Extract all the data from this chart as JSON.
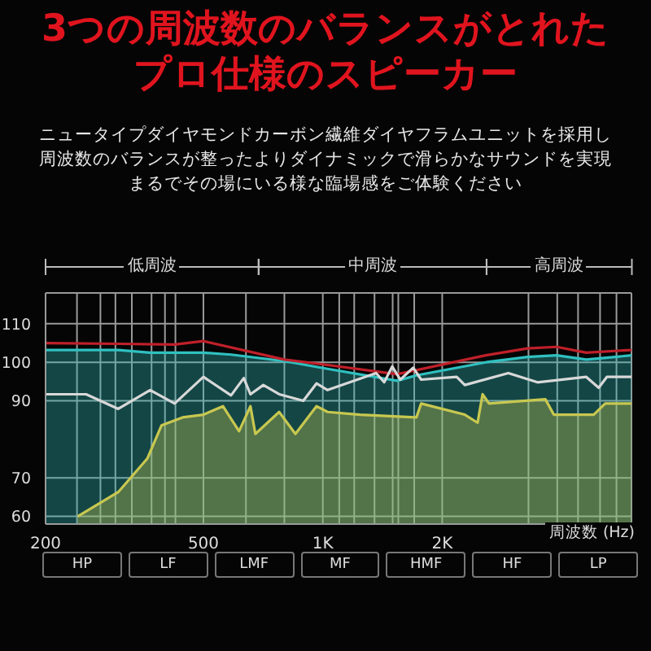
{
  "chart_data": {
    "type": "line",
    "title": "3つの周波数のバランスがとれたプロ仕様のスピーカー",
    "subtitle": "ニュータイプダイヤモンドカーボン繊維ダイヤフラムユニットを採用し周波数のバランスが整ったよりダイナミックで滑らかなサウンドを実現まるでその場にいる様な臨場感をご体験ください",
    "xlabel": "周波数 (Hz)",
    "log": "x",
    "xlim": [
      200,
      6000
    ],
    "xticks": [
      200,
      {
        "value": 240,
        "label": null
      },
      {
        "value": 275,
        "label": null
      },
      {
        "value": 300,
        "label": null
      },
      {
        "value": 330,
        "label": null
      },
      {
        "value": 370,
        "label": null
      },
      {
        "value": 400,
        "label": null
      },
      {
        "value": 425,
        "label": null
      },
      500,
      {
        "value": 640,
        "label": null
      },
      {
        "value": 800,
        "label": null
      },
      {
        "value": 1000,
        "label": "1K"
      },
      {
        "value": 1100,
        "label": null
      },
      {
        "value": 1200,
        "label": null
      },
      {
        "value": 1350,
        "label": null
      },
      {
        "value": 1500,
        "label": null
      },
      {
        "value": 1550,
        "label": null
      },
      {
        "value": 1700,
        "label": null
      },
      {
        "value": 2000,
        "label": "2K"
      },
      {
        "value": 3300,
        "label": null
      },
      {
        "value": 3900,
        "label": null
      },
      {
        "value": 4400,
        "label": null
      },
      {
        "value": 5000,
        "label": null
      },
      {
        "value": 5500,
        "label": null
      }
    ],
    "ylim": [
      58,
      118
    ],
    "yticks": [
      60,
      70,
      90,
      100,
      110
    ],
    "grid": true,
    "series": [
      {
        "color": "#c0202a",
        "x": [
          200,
          305,
          423,
          500,
          800,
          1028,
          1538,
          2576,
          3282,
          3886,
          4616,
          6000
        ],
        "values": [
          105,
          104.8,
          104.6,
          105.5,
          100.7,
          99.3,
          96.9,
          101.8,
          103.6,
          104,
          102.5,
          103.2
        ]
      },
      {
        "type": "area",
        "color": "#30c0c0",
        "x": [
          200,
          305,
          367,
          500,
          587,
          800,
          1028,
          1538,
          1722,
          2576,
          3282,
          3886,
          4616,
          6000
        ],
        "values": [
          103.2,
          103.2,
          102.5,
          102.5,
          102,
          100.3,
          98.3,
          95.2,
          96.6,
          100,
          101.4,
          101.8,
          100.7,
          101.8
        ]
      },
      {
        "color": "#d8d8d8",
        "x": [
          200,
          253,
          305,
          367,
          423,
          500,
          587,
          632,
          657,
          708,
          776,
          893,
          964,
          1028,
          1362,
          1428,
          1496,
          1568,
          1690,
          1770,
          2175,
          2280,
          2936,
          3476,
          4616,
          4960,
          5200,
          6000
        ],
        "values": [
          91.7,
          91.7,
          87.9,
          92.8,
          89.3,
          96.2,
          91.4,
          95.9,
          91.7,
          94.1,
          91.7,
          90,
          94.5,
          92.8,
          97.2,
          94.8,
          98.9,
          95.5,
          98.6,
          95.5,
          96.2,
          94.1,
          97.2,
          94.8,
          96.2,
          93.4,
          96.2,
          96.2
        ]
      },
      {
        "type": "area",
        "color": "#c8c850",
        "x": [
          241,
          305,
          361,
          392,
          443,
          500,
          560,
          615,
          657,
          676,
          776,
          853,
          964,
          1028,
          1242,
          1722,
          1770,
          2280,
          2456,
          2528,
          2624,
          3640,
          3823,
          4820,
          5150,
          6000
        ],
        "values": [
          60,
          66.3,
          75,
          83.6,
          85.7,
          86.4,
          88.6,
          82.1,
          88.6,
          81.4,
          87.1,
          81.4,
          88.6,
          87.1,
          86.4,
          85.7,
          89.3,
          86.4,
          84.3,
          91.7,
          89.3,
          90.4,
          86.4,
          86.4,
          89.3,
          89.3
        ]
      }
    ],
    "annotations": [
      "低周波",
      "中周波",
      "高周波",
      "HP",
      "LF",
      "LMF",
      "MF",
      "HMF",
      "HF",
      "LP"
    ]
  }
}
